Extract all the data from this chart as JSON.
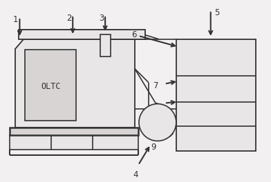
{
  "fig_width": 3.92,
  "fig_height": 2.64,
  "dpi": 100,
  "bg_color": "#f2f0f0",
  "line_color": "#333333",
  "fill_color": "#e8e6e6",
  "fill_dark": "#d8d4d4"
}
